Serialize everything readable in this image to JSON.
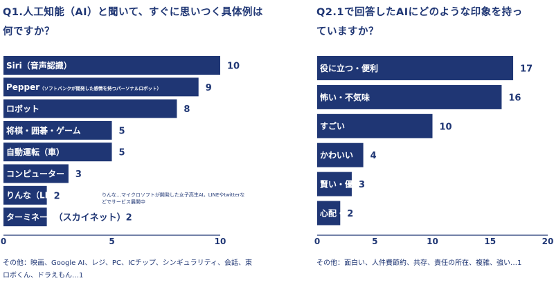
{
  "left": {
    "title": "Q1.人工知能（AI）と聞いて、すぐに思いつく具体例は何ですか？",
    "note": "その他：映画、Google AI、レジ、PC、ICチップ、シンギュラリティ、会話、東ロボくん、ドラえもん…1",
    "side_note": "りんな…マイクロソフトが開発した女子高生AI。LINEやtwitterなどでサービス展開中"
  },
  "right": {
    "title": "Q2.1で回答したAIにどのような印象を持っていますか？",
    "note": "その他：面白い、人件費節約、共存、責任の所在、複雑、強い…1"
  },
  "colors": {
    "bar": "#1f3674",
    "text": "#1f3674",
    "background": "#ffffff"
  },
  "chart_data": [
    {
      "type": "bar",
      "orientation": "horizontal",
      "title": "Q1.人工知能（AI）と聞いて、すぐに思いつく具体例は何ですか？",
      "categories": [
        "Siri（音声認識）",
        "Pepper",
        "ロボット",
        "将棋・囲碁・ゲーム",
        "自動運転（車）",
        "コンピューター",
        "りんな（LINE）",
        "ターミネーター"
      ],
      "category_sublabels": [
        "",
        "（ソフトバンクが開発した感情を持つパーソナルロボット）",
        "",
        "",
        "",
        "",
        "",
        ""
      ],
      "values": [
        10,
        9,
        8,
        5,
        5,
        3,
        2,
        2
      ],
      "value_labels": [
        "10",
        "9",
        "8",
        "5",
        "5",
        "3",
        "2",
        "（スカイネット）2"
      ],
      "xlim": [
        0,
        10
      ],
      "xticks": [
        0,
        5,
        10
      ],
      "grid": false
    },
    {
      "type": "bar",
      "orientation": "horizontal",
      "title": "Q2.1で回答したAIにどのような印象を持っていますか？",
      "categories": [
        "役に立つ・便利",
        "怖い・不気味",
        "すごい",
        "かわいい",
        "賢い・優秀",
        "心配・不安"
      ],
      "values": [
        17,
        16,
        10,
        4,
        3,
        2
      ],
      "value_labels": [
        "17",
        "16",
        "10",
        "4",
        "3",
        "2"
      ],
      "xlim": [
        0,
        20
      ],
      "xticks": [
        0,
        5,
        10,
        15,
        20
      ],
      "grid": false
    }
  ]
}
